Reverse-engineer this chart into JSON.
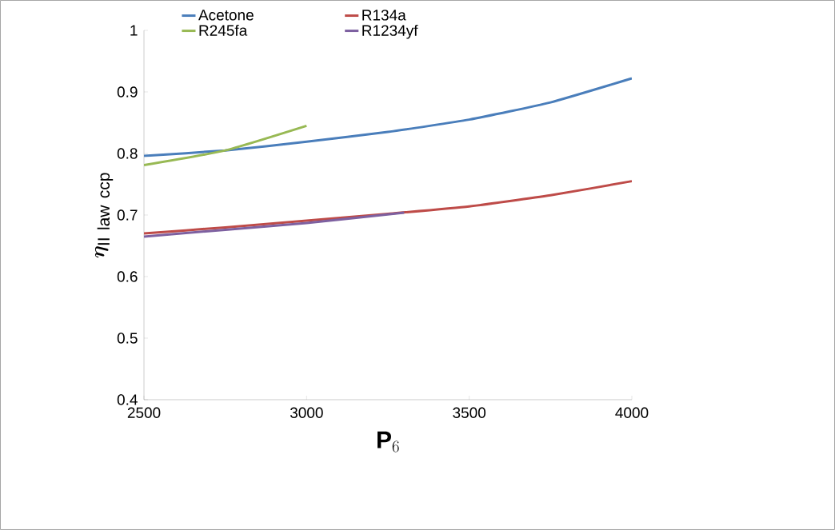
{
  "chart_data": {
    "type": "line",
    "xlabel": "\\mathbf{P}_{6}",
    "ylabel": "\\bm{\\eta}_{\\mathrm{II\\ law\\ ccp}}",
    "xlim": [
      2500,
      4000
    ],
    "xticks": [
      2500,
      3000,
      3500,
      4000
    ],
    "ylim": [
      0.4,
      1
    ],
    "yticks": [
      0.4,
      0.5,
      0.6,
      0.7,
      0.8,
      0.9,
      1
    ],
    "legend": "top",
    "marker": "none",
    "series": [
      {
        "name": "Acetone",
        "color": "#4a7ebb",
        "x": [
          2500,
          2750,
          3000,
          3250,
          3500,
          3750,
          4000
        ],
        "values": [
          0.796,
          0.805,
          0.819,
          0.835,
          0.855,
          0.883,
          0.922
        ]
      },
      {
        "name": "R134a",
        "color": "#be4b48",
        "x": [
          2500,
          2750,
          3000,
          3250,
          3500,
          3750,
          4000
        ],
        "values": [
          0.67,
          0.68,
          0.691,
          0.702,
          0.714,
          0.732,
          0.755
        ]
      },
      {
        "name": "R245fa",
        "color": "#98b954",
        "x": [
          2500,
          2750,
          3000
        ],
        "values": [
          0.781,
          0.805,
          0.845
        ]
      },
      {
        "name": "R1234yf",
        "color": "#7d60a0",
        "x": [
          2500,
          2750,
          3000,
          3300
        ],
        "values": [
          0.665,
          0.676,
          0.687,
          0.704
        ]
      }
    ]
  }
}
